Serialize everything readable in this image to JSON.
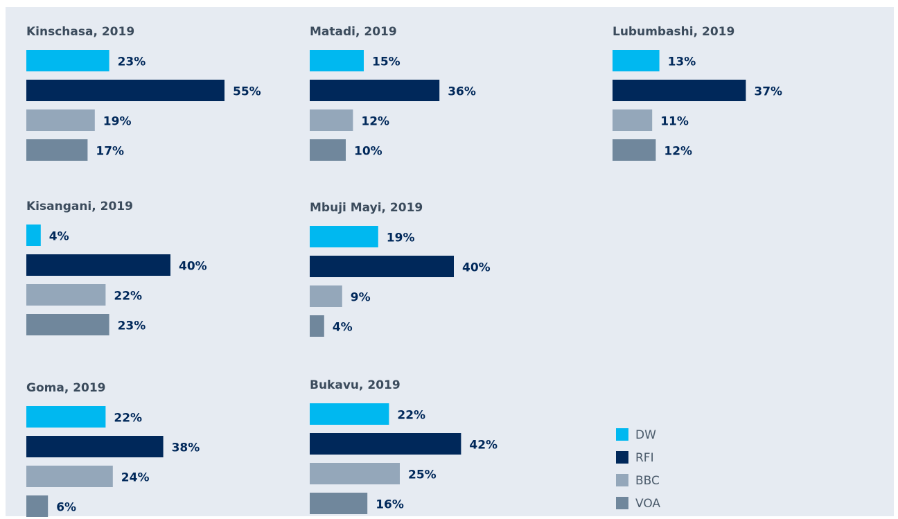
{
  "chart_data": {
    "type": "bar",
    "series": [
      {
        "name": "DW",
        "color": "#00b8f0"
      },
      {
        "name": "RFI",
        "color": "#00285a"
      },
      {
        "name": "BBC",
        "color": "#94a7ba"
      },
      {
        "name": "VOA",
        "color": "#70879c"
      }
    ],
    "panels": [
      {
        "title": "Kinschasa, 2019",
        "values": [
          23,
          55,
          19,
          17
        ],
        "value_labels": [
          "23%",
          "55%",
          "19%",
          "17%"
        ]
      },
      {
        "title": "Matadi, 2019",
        "values": [
          15,
          36,
          12,
          10
        ],
        "value_labels": [
          "15%",
          "36%",
          "12%",
          "10%"
        ]
      },
      {
        "title": "Lubumbashi, 2019",
        "values": [
          13,
          37,
          11,
          12
        ],
        "value_labels": [
          "13%",
          "37%",
          "11%",
          "12%"
        ]
      },
      {
        "title": "Kisangani, 2019",
        "values": [
          4,
          40,
          22,
          23
        ],
        "value_labels": [
          "4%",
          "40%",
          "22%",
          "23%"
        ]
      },
      {
        "title": "Mbuji Mayi, 2019",
        "values": [
          19,
          40,
          9,
          4
        ],
        "value_labels": [
          "19%",
          "40%",
          "9%",
          "4%"
        ]
      },
      {
        "title": "Goma, 2019",
        "values": [
          22,
          38,
          24,
          6
        ],
        "value_labels": [
          "22%",
          "38%",
          "24%",
          "6%"
        ]
      },
      {
        "title": "Bukavu, 2019",
        "values": [
          22,
          42,
          25,
          16
        ],
        "value_labels": [
          "22%",
          "42%",
          "25%",
          "16%"
        ]
      }
    ]
  }
}
